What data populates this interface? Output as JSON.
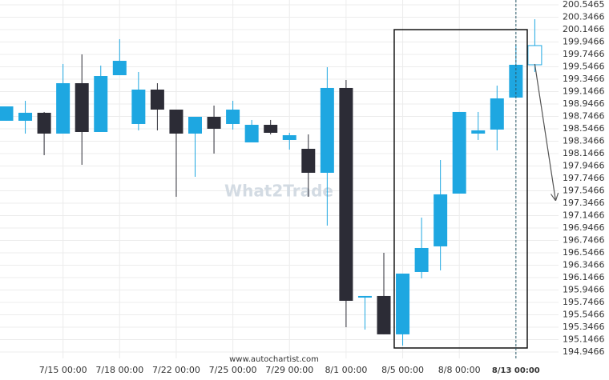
{
  "chart_data": {
    "type": "candlestick",
    "categories": [
      null,
      null,
      null,
      "7/15 00:00",
      null,
      null,
      "7/18 00:00",
      null,
      null,
      "7/22 00:00",
      null,
      null,
      "7/25 00:00",
      null,
      null,
      "7/29 00:00",
      null,
      null,
      "8/1 00:00",
      null,
      null,
      "8/5 00:00",
      null,
      null,
      "8/8 00:00",
      null,
      null,
      "8/13 00:00",
      null
    ],
    "open": [
      198.676,
      198.676,
      198.805,
      198.469,
      199.282,
      198.495,
      199.411,
      198.624,
      199.179,
      198.856,
      198.469,
      198.74,
      198.624,
      198.327,
      198.611,
      198.366,
      198.224,
      197.837,
      199.205,
      195.824,
      195.85,
      195.231,
      196.237,
      196.65,
      197.501,
      198.469,
      198.534,
      199.05,
      199.579
    ],
    "high": [
      198.908,
      198.998,
      198.818,
      199.592,
      199.747,
      199.566,
      199.992,
      199.463,
      199.282,
      198.856,
      198.74,
      198.921,
      198.998,
      198.689,
      198.689,
      198.482,
      198.456,
      199.54,
      199.334,
      195.85,
      196.547,
      196.211,
      197.114,
      198.043,
      198.818,
      198.818,
      199.243,
      199.901,
      200.314
    ],
    "low": [
      198.676,
      198.469,
      198.121,
      198.469,
      197.966,
      198.495,
      199.411,
      198.521,
      198.521,
      197.45,
      197.772,
      198.147,
      198.534,
      198.327,
      198.456,
      198.211,
      197.45,
      196.985,
      195.347,
      195.308,
      195.231,
      195.05,
      196.134,
      196.263,
      197.501,
      198.366,
      198.198,
      199.05,
      199.463
    ],
    "close": [
      198.908,
      198.805,
      198.469,
      199.282,
      198.495,
      199.398,
      199.643,
      199.179,
      198.856,
      198.469,
      198.74,
      198.547,
      198.856,
      198.611,
      198.482,
      198.443,
      197.837,
      199.205,
      195.772,
      195.85,
      195.231,
      196.211,
      196.624,
      197.489,
      198.818,
      198.521,
      199.037,
      199.579,
      199.889
    ],
    "up_color": "#1ea7e1",
    "down_color": "#2c2c36",
    "last_fill": "#ffffff",
    "ylim": [
      194.843,
      200.624
    ],
    "yticks": [
      200.5465,
      200.3466,
      200.1466,
      199.9466,
      199.7466,
      199.5466,
      199.3466,
      199.1466,
      198.9466,
      198.7466,
      198.5466,
      198.3466,
      198.1466,
      197.9466,
      197.7466,
      197.5466,
      197.3466,
      197.1466,
      196.9466,
      196.7466,
      196.5466,
      196.3466,
      196.1466,
      195.9466,
      195.7466,
      195.5466,
      195.3466,
      195.1466,
      194.9466
    ],
    "grid": true,
    "marker_index": 27,
    "highlight": {
      "from": 20.55,
      "to": 27.6,
      "low": 195.011,
      "high": 200.146
    },
    "forecast": {
      "from": [
        28,
        199.592
      ],
      "to": [
        29.1,
        197.398
      ]
    },
    "watermark": "What2Trade",
    "source": "www.autochartist.com"
  }
}
